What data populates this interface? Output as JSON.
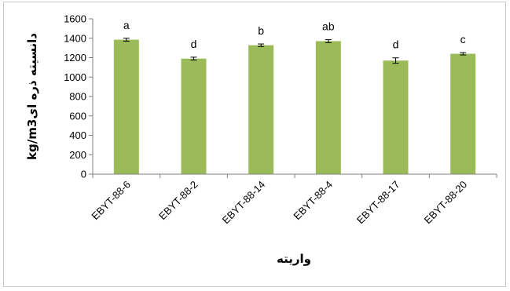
{
  "chart_data": {
    "type": "bar",
    "categories": [
      "EBYT-88-6",
      "EBYT-88-2",
      "EBYT-88-14",
      "EBYT-88-4",
      "EBYT-88-17",
      "EBYT-88-20"
    ],
    "values": [
      1385,
      1190,
      1328,
      1370,
      1170,
      1240
    ],
    "errors": [
      15,
      15,
      13,
      15,
      28,
      12
    ],
    "significance_letters": [
      "a",
      "d",
      "b",
      "ab",
      "d",
      "c"
    ],
    "xlabel": "واریته",
    "ylabel": "kg/m3دانسیته ذره ای",
    "ylim": [
      0,
      1600
    ],
    "yticks": [
      0,
      200,
      400,
      600,
      800,
      1000,
      1200,
      1400,
      1600
    ],
    "grid": false,
    "bar_color": "#9bbb59"
  }
}
